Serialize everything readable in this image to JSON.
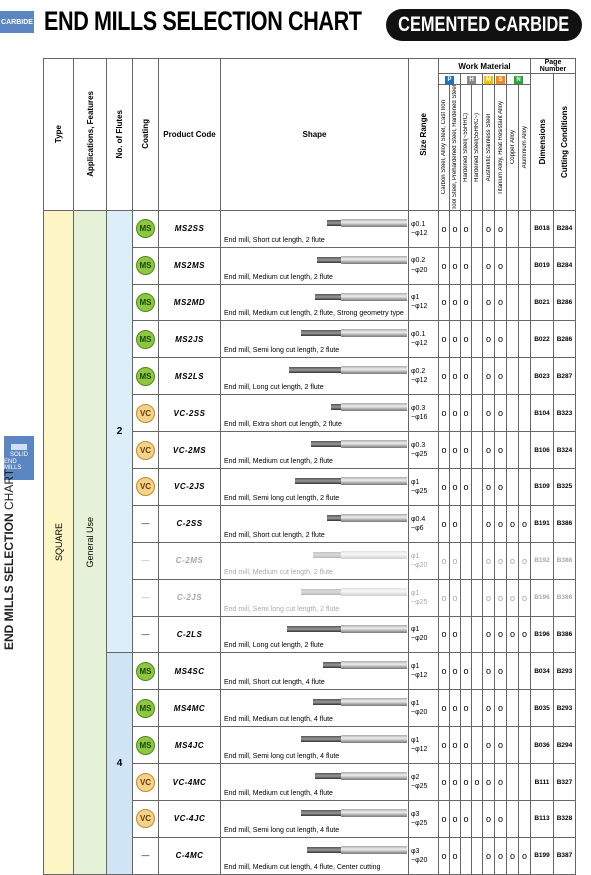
{
  "header": {
    "tab": "CARBIDE",
    "title": "END MILLS SELECTION CHART",
    "badge": "CEMENTED CARBIDE"
  },
  "side": {
    "tab_line1": "SOLID",
    "tab_line2": "END MILLS",
    "title_bold": "END MILLS SELECTION",
    "title_light": "CHART"
  },
  "columns": {
    "type": "Type",
    "applications": "Applications, Features",
    "flutes": "No. of Flutes",
    "coating": "Coating",
    "product_code": "Product Code",
    "shape": "Shape",
    "size_range": "Size Range",
    "work_material": "Work Material",
    "page_number": "Page Number",
    "dimensions": "Dimensions",
    "cutting": "Cutting Conditions"
  },
  "material_groups": [
    {
      "letter": "P",
      "color": "#1f6fc7"
    },
    {
      "letter": "H",
      "color": "#8a8a8a"
    },
    {
      "letter": "M",
      "color": "#f2c200"
    },
    {
      "letter": "S",
      "color": "#f08a1a"
    },
    {
      "letter": "N",
      "color": "#2aa53a"
    }
  ],
  "materials": [
    "Carbon Steel, Alloy Steel, Cast Iron",
    "Tool Steel, Prehardened Steel, Hardened Steel",
    "Hardened Steel(~55HRC)",
    "Hardened Steel(55HRC~)",
    "Austenitic Stainless Steel",
    "Titanium Alloy, Heat Resistant Alloy",
    "Copper Alloy",
    "Aluminium Alloy"
  ],
  "type_value": "SQUARE",
  "application_value": "General Use",
  "flute_groups": [
    "2",
    "4"
  ],
  "rows": [
    {
      "coat": "MS",
      "code": "MS2SS",
      "desc": "End mill, Short cut length, 2 flute",
      "s1": "φ0.1",
      "s2": "~φ12",
      "m": [
        "o",
        "o",
        "o",
        "",
        "o",
        "o",
        "",
        ""
      ],
      "dim": "B018",
      "cut": "B284",
      "flute": "2",
      "faded": false
    },
    {
      "coat": "MS",
      "code": "MS2MS",
      "desc": "End mill, Medium cut length, 2 flute",
      "s1": "φ0.2",
      "s2": "~φ20",
      "m": [
        "o",
        "o",
        "o",
        "",
        "o",
        "o",
        "",
        ""
      ],
      "dim": "B019",
      "cut": "B284",
      "flute": "2",
      "faded": false
    },
    {
      "coat": "MS",
      "code": "MS2MD",
      "desc": "End mill, Medium cut length, 2 flute, Strong geometry type",
      "s1": "φ1",
      "s2": "~φ12",
      "m": [
        "o",
        "o",
        "o",
        "",
        "o",
        "o",
        "",
        ""
      ],
      "dim": "B021",
      "cut": "B286",
      "flute": "2",
      "faded": false
    },
    {
      "coat": "MS",
      "code": "MS2JS",
      "desc": "End mill, Semi long cut length, 2 flute",
      "s1": "φ0.1",
      "s2": "~φ12",
      "m": [
        "o",
        "o",
        "o",
        "",
        "o",
        "o",
        "",
        ""
      ],
      "dim": "B022",
      "cut": "B286",
      "flute": "2",
      "faded": false
    },
    {
      "coat": "MS",
      "code": "MS2LS",
      "desc": "End mill, Long cut length, 2 flute",
      "s1": "φ0.2",
      "s2": "~φ12",
      "m": [
        "o",
        "o",
        "o",
        "",
        "o",
        "o",
        "",
        ""
      ],
      "dim": "B023",
      "cut": "B287",
      "flute": "2",
      "faded": false
    },
    {
      "coat": "VC",
      "code": "VC-2SS",
      "desc": "End mill, Extra short cut length, 2 flute",
      "s1": "φ0.3",
      "s2": "~φ16",
      "m": [
        "o",
        "o",
        "o",
        "",
        "o",
        "o",
        "",
        ""
      ],
      "dim": "B104",
      "cut": "B323",
      "flute": "2",
      "faded": false
    },
    {
      "coat": "VC",
      "code": "VC-2MS",
      "desc": "End mill, Medium cut length, 2 flute",
      "s1": "φ0.3",
      "s2": "~φ25",
      "m": [
        "o",
        "o",
        "o",
        "",
        "o",
        "o",
        "",
        ""
      ],
      "dim": "B106",
      "cut": "B324",
      "flute": "2",
      "faded": false
    },
    {
      "coat": "VC",
      "code": "VC-2JS",
      "desc": "End mill, Semi long cut length, 2 flute",
      "s1": "φ1",
      "s2": "~φ25",
      "m": [
        "o",
        "o",
        "o",
        "",
        "o",
        "o",
        "",
        ""
      ],
      "dim": "B109",
      "cut": "B325",
      "flute": "2",
      "faded": false
    },
    {
      "coat": "—",
      "code": "C-2SS",
      "desc": "End mill, Short cut length, 2 flute",
      "s1": "φ0.4",
      "s2": "~φ6",
      "m": [
        "o",
        "o",
        "",
        "",
        "o",
        "o",
        "o",
        "o"
      ],
      "dim": "B191",
      "cut": "B386",
      "flute": "2",
      "faded": false
    },
    {
      "coat": "—",
      "code": "C-2MS",
      "desc": "End mill, Medium cut length, 2 flute",
      "s1": "φ1",
      "s2": "~φ20",
      "m": [
        "o",
        "o",
        "",
        "",
        "o",
        "o",
        "o",
        "o"
      ],
      "dim": "B192",
      "cut": "B386",
      "flute": "2",
      "faded": true
    },
    {
      "coat": "—",
      "code": "C-2JS",
      "desc": "End mill, Semi long cut length, 2 flute",
      "s1": "φ1",
      "s2": "~φ25",
      "m": [
        "o",
        "o",
        "",
        "",
        "o",
        "o",
        "o",
        "o"
      ],
      "dim": "B196",
      "cut": "B386",
      "flute": "2",
      "faded": true
    },
    {
      "coat": "—",
      "code": "C-2LS",
      "desc": "End mill, Long cut length, 2 flute",
      "s1": "φ1",
      "s2": "~φ20",
      "m": [
        "o",
        "o",
        "",
        "",
        "o",
        "o",
        "o",
        "o"
      ],
      "dim": "B196",
      "cut": "B386",
      "flute": "2",
      "faded": false
    },
    {
      "coat": "MS",
      "code": "MS4SC",
      "desc": "End mill, Short cut length, 4 flute",
      "s1": "φ1",
      "s2": "~φ12",
      "m": [
        "o",
        "o",
        "o",
        "",
        "o",
        "o",
        "",
        ""
      ],
      "dim": "B034",
      "cut": "B293",
      "flute": "4",
      "faded": false
    },
    {
      "coat": "MS",
      "code": "MS4MC",
      "desc": "End mill, Medium cut length, 4 flute",
      "s1": "φ1",
      "s2": "~φ20",
      "m": [
        "o",
        "o",
        "o",
        "",
        "o",
        "o",
        "",
        ""
      ],
      "dim": "B035",
      "cut": "B293",
      "flute": "4",
      "faded": false
    },
    {
      "coat": "MS",
      "code": "MS4JC",
      "desc": "End mill, Semi long cut length, 4 flute",
      "s1": "φ1",
      "s2": "~φ12",
      "m": [
        "o",
        "o",
        "o",
        "",
        "o",
        "o",
        "",
        ""
      ],
      "dim": "B036",
      "cut": "B294",
      "flute": "4",
      "faded": false
    },
    {
      "coat": "VC",
      "code": "VC-4MC",
      "desc": "End mill, Medium cut length, 4 flute",
      "s1": "φ2",
      "s2": "~φ25",
      "m": [
        "o",
        "o",
        "o",
        "o",
        "o",
        "o",
        "",
        ""
      ],
      "dim": "B111",
      "cut": "B327",
      "flute": "4",
      "faded": false
    },
    {
      "coat": "VC",
      "code": "VC-4JC",
      "desc": "End mill, Semi long cut length, 4 flute",
      "s1": "φ3",
      "s2": "~φ25",
      "m": [
        "o",
        "o",
        "o",
        "",
        "o",
        "o",
        "",
        ""
      ],
      "dim": "B113",
      "cut": "B328",
      "flute": "4",
      "faded": false
    },
    {
      "coat": "—",
      "code": "C-4MC",
      "desc": "End mill, Medium cut length, 4 flute, Center cutting",
      "s1": "φ3",
      "s2": "~φ20",
      "m": [
        "o",
        "o",
        "",
        "",
        "o",
        "o",
        "o",
        "o"
      ],
      "dim": "B199",
      "cut": "B387",
      "flute": "4",
      "faded": false
    }
  ]
}
